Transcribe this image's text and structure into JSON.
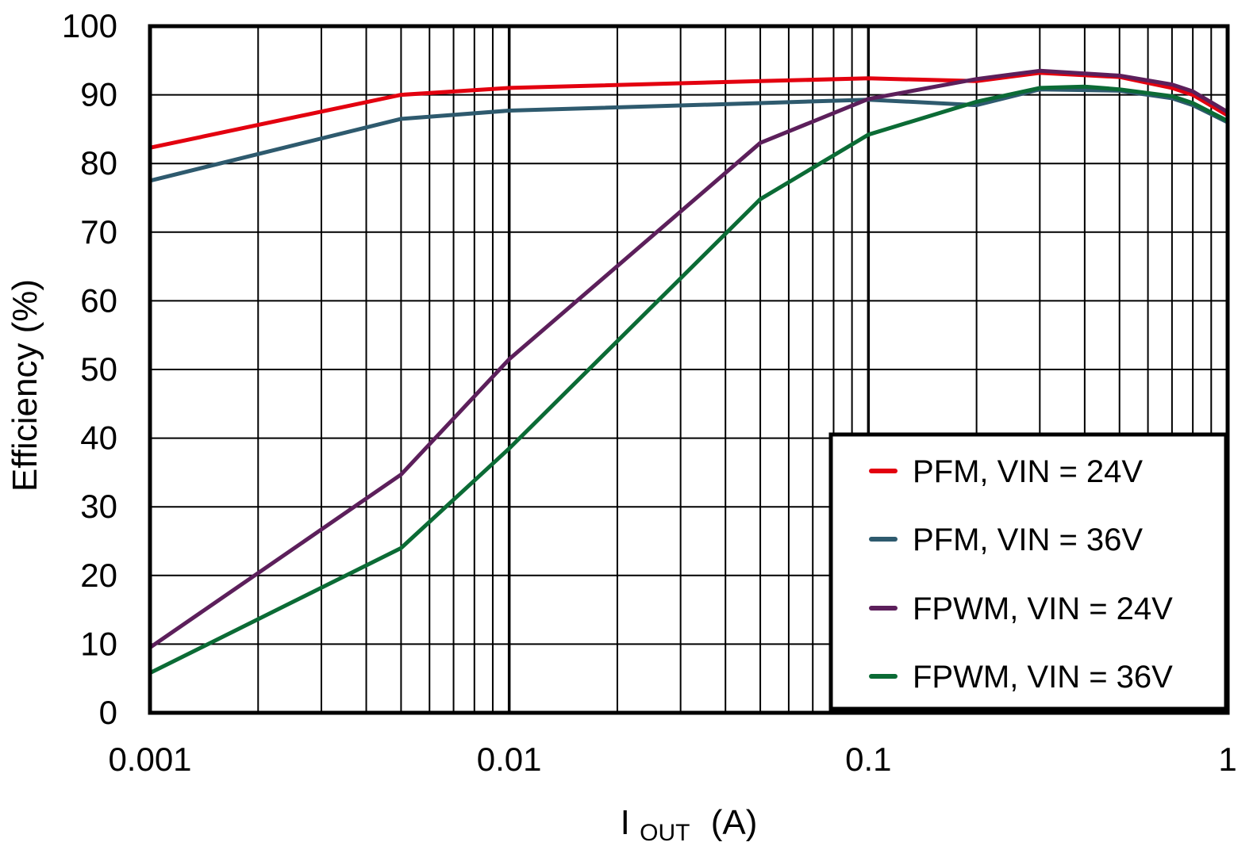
{
  "chart_data": {
    "type": "line",
    "title": "",
    "xlabel": "I_OUT (A)",
    "xlabel_main": "I",
    "xlabel_sub": "OUT",
    "xlabel_unit": "(A)",
    "ylabel": "Efficiency (%)",
    "xscale": "log",
    "xlim": [
      0.001,
      1
    ],
    "ylim": [
      0,
      100
    ],
    "grid": true,
    "legend_position": "bottom-right",
    "x_ticks": [
      {
        "value": 0.001,
        "label": "0.001"
      },
      {
        "value": 0.01,
        "label": "0.01"
      },
      {
        "value": 0.1,
        "label": "0.1"
      },
      {
        "value": 1,
        "label": "1"
      }
    ],
    "y_ticks": [
      {
        "value": 0,
        "label": "0"
      },
      {
        "value": 10,
        "label": "10"
      },
      {
        "value": 20,
        "label": "20"
      },
      {
        "value": 30,
        "label": "30"
      },
      {
        "value": 40,
        "label": "40"
      },
      {
        "value": 50,
        "label": "50"
      },
      {
        "value": 60,
        "label": "60"
      },
      {
        "value": 70,
        "label": "70"
      },
      {
        "value": 80,
        "label": "80"
      },
      {
        "value": 90,
        "label": "90"
      },
      {
        "value": 100,
        "label": "100"
      }
    ],
    "series": [
      {
        "name": "PFM, VIN = 24V",
        "color": "#e3000f",
        "points": [
          [
            0.001,
            82.3
          ],
          [
            0.005,
            90.0
          ],
          [
            0.01,
            91.0
          ],
          [
            0.05,
            92.0
          ],
          [
            0.1,
            92.4
          ],
          [
            0.2,
            92.0
          ],
          [
            0.3,
            93.2
          ],
          [
            0.5,
            92.6
          ],
          [
            0.7,
            91.0
          ],
          [
            0.8,
            90.0
          ],
          [
            1.0,
            87.0
          ]
        ]
      },
      {
        "name": "PFM, VIN = 36V",
        "color": "#2e5a6e",
        "points": [
          [
            0.001,
            77.5
          ],
          [
            0.005,
            86.5
          ],
          [
            0.01,
            87.7
          ],
          [
            0.05,
            88.8
          ],
          [
            0.1,
            89.3
          ],
          [
            0.2,
            88.5
          ],
          [
            0.3,
            90.8
          ],
          [
            0.5,
            90.6
          ],
          [
            0.7,
            89.5
          ],
          [
            0.8,
            88.5
          ],
          [
            1.0,
            86.0
          ]
        ]
      },
      {
        "name": "FPWM, VIN = 24V",
        "color": "#5c1f5b",
        "points": [
          [
            0.001,
            9.5
          ],
          [
            0.005,
            34.7
          ],
          [
            0.01,
            51.5
          ],
          [
            0.05,
            83.0
          ],
          [
            0.1,
            89.4
          ],
          [
            0.2,
            92.3
          ],
          [
            0.3,
            93.5
          ],
          [
            0.5,
            92.8
          ],
          [
            0.7,
            91.5
          ],
          [
            0.8,
            90.5
          ],
          [
            1.0,
            87.5
          ]
        ]
      },
      {
        "name": "FPWM, VIN = 36V",
        "color": "#0b6b35",
        "points": [
          [
            0.001,
            5.8
          ],
          [
            0.005,
            24.0
          ],
          [
            0.01,
            38.5
          ],
          [
            0.05,
            74.8
          ],
          [
            0.1,
            84.2
          ],
          [
            0.2,
            89.0
          ],
          [
            0.3,
            91.0
          ],
          [
            0.4,
            91.2
          ],
          [
            0.5,
            90.8
          ],
          [
            0.7,
            89.8
          ],
          [
            0.8,
            88.8
          ],
          [
            1.0,
            86.2
          ]
        ]
      }
    ]
  }
}
